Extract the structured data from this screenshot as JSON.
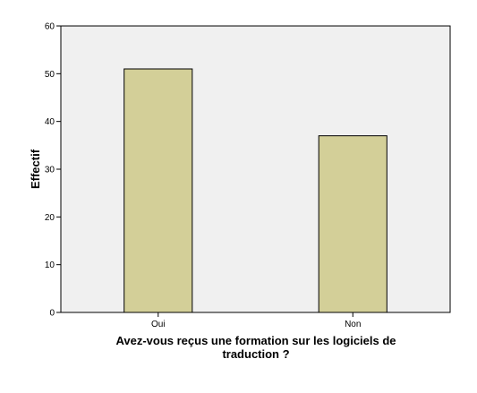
{
  "chart_data": {
    "type": "bar",
    "categories": [
      "Oui",
      "Non"
    ],
    "values": [
      51,
      37
    ],
    "title": "",
    "xlabel_lines": [
      "Avez-vous reçus une formation sur les logiciels de",
      "traduction ?"
    ],
    "ylabel": "Effectif",
    "ylim": [
      0,
      60
    ],
    "yticks": [
      0,
      10,
      20,
      30,
      40,
      50,
      60
    ],
    "grid": false,
    "legend": "none",
    "colors": {
      "bar_fill": "#d3cf98",
      "bar_stroke": "#000000",
      "plot_background": "#f0f0f0",
      "axis": "#000000"
    }
  }
}
